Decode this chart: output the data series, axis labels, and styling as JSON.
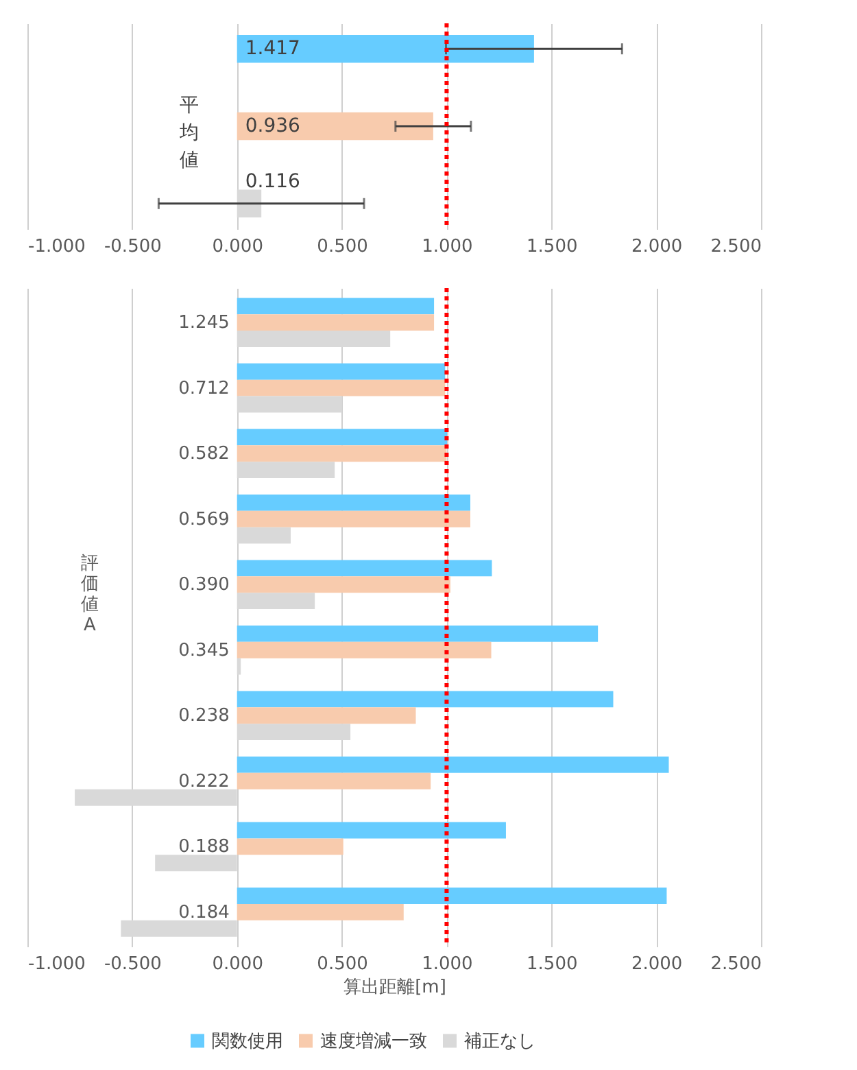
{
  "chart_data": [
    {
      "type": "bar",
      "orientation": "horizontal",
      "annotations": [
        "平均値"
      ],
      "categories": [
        null,
        null,
        null
      ],
      "values": [
        1.417,
        0.936,
        0.116
      ],
      "colors": [
        "#66ccff",
        "#f8cbad",
        "#d9d9d9"
      ],
      "errors": [
        0.42,
        0.18,
        0.49
      ],
      "data_labels": true,
      "xlim": [
        -1.0,
        2.5
      ],
      "xticks": [
        {
          "value": -1.0,
          "label": "-1.000"
        },
        {
          "value": -0.5,
          "label": "-0.500"
        },
        {
          "value": 0.0,
          "label": "0.000"
        },
        {
          "value": 0.5,
          "label": "0.500"
        },
        {
          "value": 1.0,
          "label": "1.000"
        },
        {
          "value": 1.5,
          "label": "1.500"
        },
        {
          "value": 2.0,
          "label": "2.000"
        },
        {
          "value": 2.5,
          "label": "2.500"
        }
      ],
      "grid": "x",
      "ref_lines": [
        {
          "axis": "x",
          "value": 1.0,
          "label": null,
          "color": "#ff0000",
          "line_style": "dotted"
        }
      ]
    },
    {
      "type": "bar",
      "orientation": "horizontal",
      "ylabel": "評価値A",
      "xlabel": "算出距離[m]",
      "categories": [
        "1.245",
        "0.712",
        "0.582",
        "0.569",
        "0.390",
        "0.345",
        "0.238",
        "0.222",
        "0.188",
        "0.184"
      ],
      "series": [
        {
          "name": "関数使用",
          "color": "#66ccff",
          "values": [
            0.94,
            0.993,
            1.002,
            1.113,
            1.216,
            1.722,
            1.795,
            2.06,
            1.283,
            2.05
          ]
        },
        {
          "name": "速度増減一致",
          "color": "#f8cbad",
          "values": [
            0.94,
            0.993,
            1.0,
            1.113,
            1.018,
            1.213,
            0.853,
            0.924,
            0.507,
            0.795
          ]
        },
        {
          "name": "補正なし",
          "color": "#d9d9d9",
          "values": [
            0.731,
            0.501,
            0.466,
            0.256,
            0.371,
            0.018,
            0.541,
            -0.774,
            -0.391,
            -0.554
          ]
        }
      ],
      "xlim": [
        -1.0,
        2.5
      ],
      "xticks": [
        {
          "value": -1.0,
          "label": "-1.000"
        },
        {
          "value": -0.5,
          "label": "-0.500"
        },
        {
          "value": 0.0,
          "label": "0.000"
        },
        {
          "value": 0.5,
          "label": "0.500"
        },
        {
          "value": 1.0,
          "label": "1.000"
        },
        {
          "value": 1.5,
          "label": "1.500"
        },
        {
          "value": 2.0,
          "label": "2.000"
        },
        {
          "value": 2.5,
          "label": "2.500"
        }
      ],
      "grid": "x",
      "legend": "bottom",
      "ref_lines": [
        {
          "axis": "x",
          "value": 1.0,
          "label": null,
          "color": "#ff0000",
          "line_style": "dotted"
        }
      ]
    }
  ]
}
